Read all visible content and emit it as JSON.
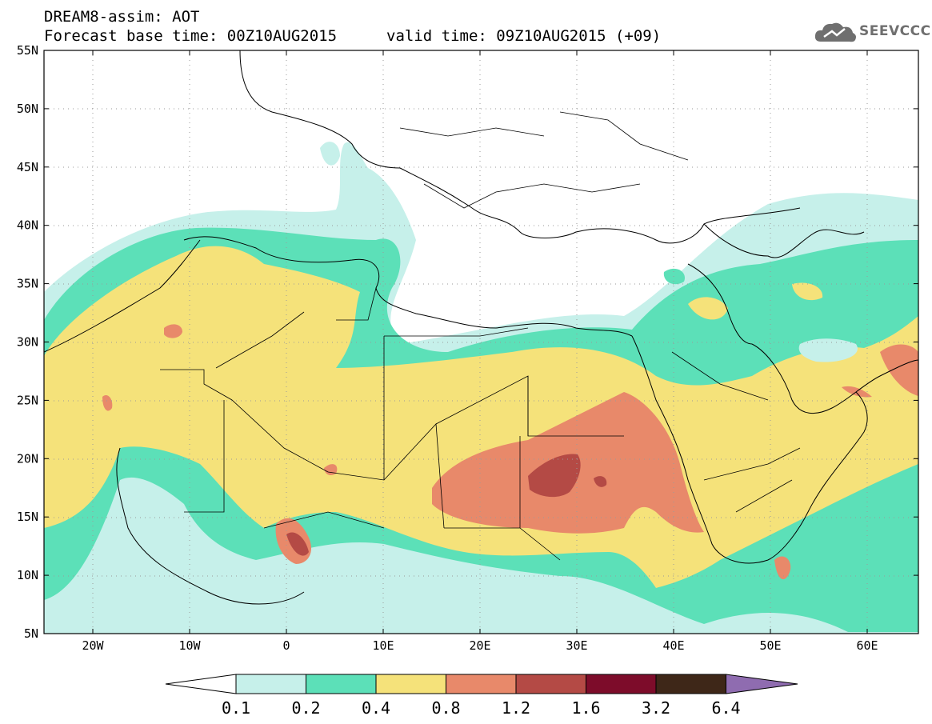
{
  "header": {
    "line1": "DREAM8-assim: AOT",
    "line2": "Forecast base time: 00Z10AUG2015",
    "valid": "valid time: 09Z10AUG2015 (+09)"
  },
  "logo": {
    "text": "SEEVCCC",
    "icon": "cloud-icon",
    "color": "#6f6f6f"
  },
  "axes": {
    "lat_ticks": [
      "55N",
      "50N",
      "45N",
      "40N",
      "35N",
      "30N",
      "25N",
      "20N",
      "15N",
      "10N",
      "5N"
    ],
    "lon_ticks": [
      "20W",
      "10W",
      "0",
      "10E",
      "20E",
      "30E",
      "40E",
      "50E",
      "60E"
    ]
  },
  "colorbar": {
    "labels": [
      "0.1",
      "0.2",
      "0.4",
      "0.8",
      "1.2",
      "1.6",
      "3.2",
      "6.4"
    ],
    "colors": [
      "#c6f0ea",
      "#5ce0b8",
      "#f5e27a",
      "#e8896a",
      "#b44a45",
      "#7d0c2a",
      "#3e2718",
      "#8f6cb0"
    ]
  }
}
